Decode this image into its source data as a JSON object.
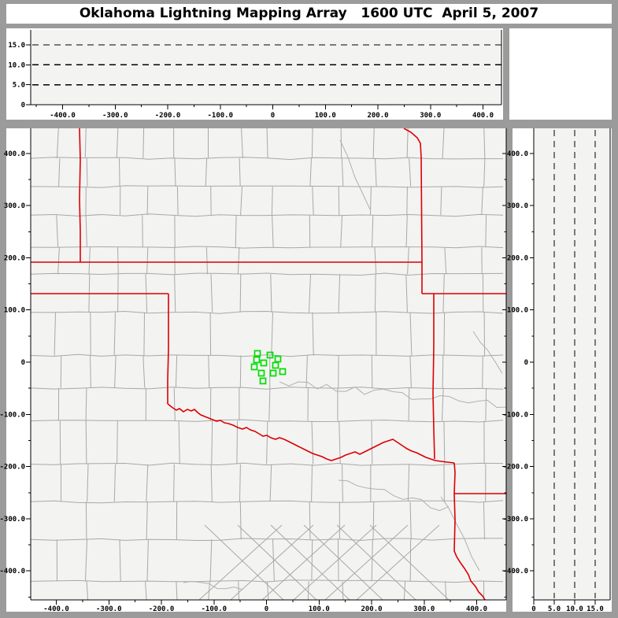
{
  "title": "Oklahoma Lightning Mapping Array   1600 UTC  April 5, 2007",
  "colors": {
    "frame": "#9b9b9b",
    "panel_background": "#ffffff",
    "plot_background": "#f3f3f2",
    "axis": "#000000",
    "grid_dashes": "#000000",
    "state_border": "#dd0000",
    "county_border": "#a8a8a8",
    "river": "#b0b0b0",
    "station_marker": "#00dd00"
  },
  "chart_data": [
    {
      "id": "ew_altitude",
      "type": "scatter",
      "description": "Altitude (km) vs East-West distance (km) cross-section, no lightning sources plotted",
      "x_tick_values": [
        -400,
        -300,
        -200,
        -100,
        0,
        100,
        200,
        300,
        400
      ],
      "x_tick_labels": [
        "-400.0",
        "-300.0",
        "-200.0",
        "-100.0",
        "0",
        "100.0",
        "200.0",
        "300.0",
        "400.0"
      ],
      "y_tick_values": [
        0,
        5,
        10,
        15
      ],
      "y_tick_labels": [
        "0",
        "5.0",
        "10.0",
        "15.0"
      ],
      "xlim": [
        -460,
        445
      ],
      "ylim": [
        0,
        19
      ],
      "grid": "horizontal dashed lines at 5, 10, 15 km",
      "legend_position": "none",
      "points": []
    },
    {
      "id": "plan_view",
      "type": "scatter",
      "description": "Plan view map: state borders red, county borders gray, LMA stations green squares, no lightning sources plotted",
      "x_tick_values": [
        -400,
        -300,
        -200,
        -100,
        0,
        100,
        200,
        300,
        400
      ],
      "x_tick_labels": [
        "-400.0",
        "-300.0",
        "-200.0",
        "-100.0",
        "0",
        "100.0",
        "200.0",
        "300.0",
        "400.0"
      ],
      "y_tick_values": [
        400,
        300,
        200,
        100,
        0,
        -100,
        -200,
        -300,
        -400
      ],
      "y_tick_labels": [
        "400.0",
        "300.0",
        "200.0",
        "100.0",
        "0",
        "-100.0",
        "-200.0",
        "-300.0",
        "-400.0"
      ],
      "xlim": [
        -460,
        445
      ],
      "ylim": [
        -455,
        448
      ],
      "grid": "off",
      "legend_position": "none",
      "points": [],
      "stations_km": [
        [
          -17.2,
          16.6
        ],
        [
          6.7,
          13.6
        ],
        [
          21.7,
          6.0
        ],
        [
          -18.7,
          4.5
        ],
        [
          -5.2,
          -1.5
        ],
        [
          -23.2,
          -9.0
        ],
        [
          17.2,
          -6.0
        ],
        [
          -9.7,
          -21.1
        ],
        [
          12.7,
          -21.1
        ],
        [
          30.7,
          -18.1
        ],
        [
          -6.7,
          -36.1
        ]
      ]
    },
    {
      "id": "ns_altitude",
      "type": "scatter",
      "description": "North-South distance (km) vs Altitude (km) cross-section, no lightning sources plotted",
      "x_tick_values": [
        0,
        5,
        10,
        15
      ],
      "x_tick_labels": [
        "0",
        "5.0",
        "10.0",
        "15.0"
      ],
      "y_tick_values": [
        400,
        300,
        200,
        100,
        0,
        -100,
        -200,
        -300,
        -400
      ],
      "y_tick_labels": [
        "400.0",
        "300.0",
        "200.0",
        "100.0",
        "0",
        "-100.0",
        "-200.0",
        "-300.0",
        "-400.0"
      ],
      "xlim": [
        0,
        18.7
      ],
      "ylim": [
        -455,
        448
      ],
      "grid": "vertical dashed lines at 5, 10, 15 km",
      "legend_position": "none",
      "points": []
    }
  ]
}
